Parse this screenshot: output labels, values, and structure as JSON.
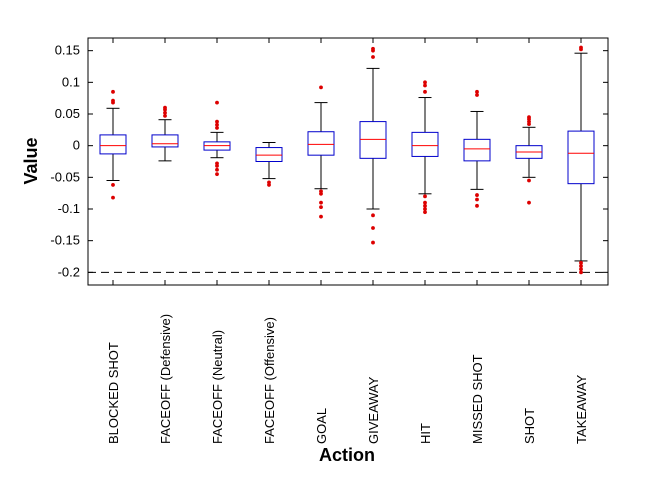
{
  "chart_data": {
    "type": "box",
    "title": "",
    "xlabel": "Action",
    "ylabel": "Value",
    "ylim": [
      -0.22,
      0.17
    ],
    "yticks": [
      -0.2,
      -0.15,
      -0.1,
      -0.05,
      0,
      0.05,
      0.1,
      0.15
    ],
    "ytick_labels": [
      "-0.2",
      "-0.15",
      "-0.1",
      "-0.05",
      "0",
      "0.05",
      "0.1",
      "0.15"
    ],
    "reference_line": {
      "y": -0.2,
      "style": "dashed"
    },
    "colors": {
      "box": "#0000cc",
      "whisker": "#000000",
      "median": "#ff0000",
      "outlier": "#dd0000",
      "frame": "#000000"
    },
    "grid": false,
    "categories": [
      "BLOCKED SHOT",
      "FACEOFF (Defensive)",
      "FACEOFF (Neutral)",
      "FACEOFF (Offensive)",
      "GOAL",
      "GIVEAWAY",
      "HIT",
      "MISSED SHOT",
      "SHOT",
      "TAKEAWAY"
    ],
    "boxes": [
      {
        "whisker_low": -0.055,
        "q1": -0.013,
        "median": 0.0,
        "q3": 0.017,
        "whisker_high": 0.059,
        "outliers": [
          0.085,
          0.071,
          0.068,
          -0.062,
          -0.082
        ]
      },
      {
        "whisker_low": -0.024,
        "q1": -0.002,
        "median": 0.003,
        "q3": 0.017,
        "whisker_high": 0.041,
        "outliers": [
          0.06,
          0.057,
          0.052,
          0.047
        ]
      },
      {
        "whisker_low": -0.019,
        "q1": -0.007,
        "median": 0.0,
        "q3": 0.006,
        "whisker_high": 0.021,
        "outliers": [
          0.068,
          0.038,
          0.033,
          0.028,
          -0.028,
          -0.032,
          -0.038,
          -0.045
        ]
      },
      {
        "whisker_low": -0.052,
        "q1": -0.025,
        "median": -0.015,
        "q3": -0.003,
        "whisker_high": 0.005,
        "outliers": [
          -0.058,
          -0.062
        ]
      },
      {
        "whisker_low": -0.068,
        "q1": -0.015,
        "median": 0.002,
        "q3": 0.022,
        "whisker_high": 0.068,
        "outliers": [
          0.092,
          -0.072,
          -0.076,
          -0.09,
          -0.097,
          -0.112
        ]
      },
      {
        "whisker_low": -0.1,
        "q1": -0.02,
        "median": 0.01,
        "q3": 0.038,
        "whisker_high": 0.122,
        "outliers": [
          0.153,
          0.15,
          0.14,
          -0.11,
          -0.13,
          -0.153
        ]
      },
      {
        "whisker_low": -0.076,
        "q1": -0.017,
        "median": 0.0,
        "q3": 0.021,
        "whisker_high": 0.076,
        "outliers": [
          0.1,
          0.095,
          0.085,
          -0.08,
          -0.09,
          -0.095,
          -0.1,
          -0.105
        ]
      },
      {
        "whisker_low": -0.069,
        "q1": -0.024,
        "median": -0.005,
        "q3": 0.01,
        "whisker_high": 0.054,
        "outliers": [
          0.085,
          0.08,
          -0.078,
          -0.085,
          -0.095
        ]
      },
      {
        "whisker_low": -0.05,
        "q1": -0.02,
        "median": -0.01,
        "q3": 0.0,
        "whisker_high": 0.029,
        "outliers": [
          0.045,
          0.042,
          0.038,
          0.034,
          -0.055,
          -0.09
        ]
      },
      {
        "whisker_low": -0.182,
        "q1": -0.06,
        "median": -0.012,
        "q3": 0.023,
        "whisker_high": 0.146,
        "outliers": [
          0.155,
          0.152,
          -0.185,
          -0.19,
          -0.195,
          -0.2
        ]
      }
    ]
  }
}
